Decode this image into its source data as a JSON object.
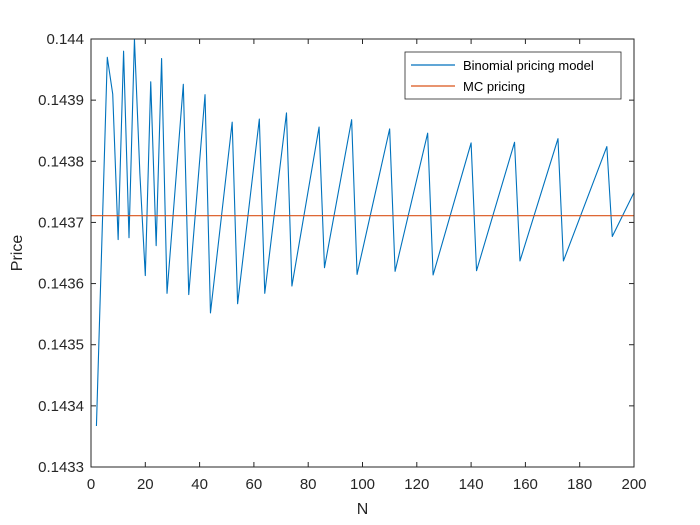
{
  "chart_data": {
    "type": "line",
    "title": "",
    "xlabel": "N",
    "ylabel": "Price",
    "xlim": [
      0,
      200
    ],
    "ylim": [
      0.1433,
      0.144
    ],
    "xticks": [
      0,
      20,
      40,
      60,
      80,
      100,
      120,
      140,
      160,
      180,
      200
    ],
    "xtick_labels": [
      "0",
      "20",
      "40",
      "60",
      "80",
      "100",
      "120",
      "140",
      "160",
      "180",
      "200"
    ],
    "yticks": [
      0.1433,
      0.1434,
      0.1435,
      0.1436,
      0.1437,
      0.1438,
      0.1439,
      0.144
    ],
    "ytick_labels": [
      "0.1433",
      "0.1434",
      "0.1435",
      "0.1436",
      "0.1437",
      "0.1438",
      "0.1439",
      "0.144"
    ],
    "grid": false,
    "legend_position": "top-right",
    "series": [
      {
        "name": "Binomial pricing model",
        "color": "#0072BD",
        "x": [
          2,
          6,
          8,
          10,
          12,
          14,
          16,
          18,
          20,
          22,
          24,
          26,
          28,
          34,
          36,
          42,
          44,
          52,
          54,
          62,
          64,
          72,
          74,
          84,
          86,
          96,
          98,
          110,
          112,
          124,
          126,
          140,
          142,
          156,
          158,
          172,
          174,
          190,
          192,
          200
        ],
        "y": [
          0.143367,
          0.14397,
          0.14391,
          0.143672,
          0.14398,
          0.143675,
          0.144,
          0.14378,
          0.143613,
          0.14393,
          0.143662,
          0.143968,
          0.143584,
          0.143926,
          0.143582,
          0.143909,
          0.143552,
          0.143864,
          0.143567,
          0.143869,
          0.143584,
          0.143879,
          0.143596,
          0.143856,
          0.143626,
          0.143868,
          0.143615,
          0.143853,
          0.14362,
          0.143846,
          0.143614,
          0.14383,
          0.143621,
          0.143831,
          0.143637,
          0.143837,
          0.143637,
          0.143824,
          0.143677,
          0.143749
        ]
      },
      {
        "name": "MC pricing",
        "color": "#D95319",
        "x": [
          0,
          200
        ],
        "y": [
          0.143711,
          0.143711
        ]
      }
    ]
  }
}
